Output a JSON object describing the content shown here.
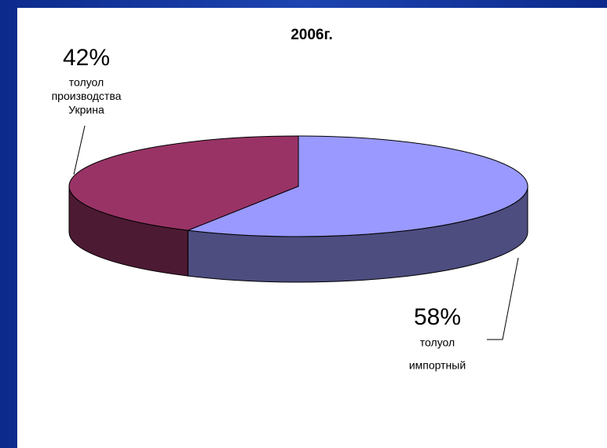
{
  "chart_data": {
    "type": "pie3d",
    "title": "2006г.",
    "categories": [
      [
        "толуол",
        "импортный"
      ],
      [
        "толуол",
        "производства",
        "Укрина"
      ]
    ],
    "values": [
      58,
      42
    ],
    "value_labels": [
      "58%",
      "42%"
    ],
    "colors": [
      "#9999ff",
      "#993366"
    ],
    "side_colors": [
      "#4d4d80",
      "#4d1a33"
    ]
  }
}
